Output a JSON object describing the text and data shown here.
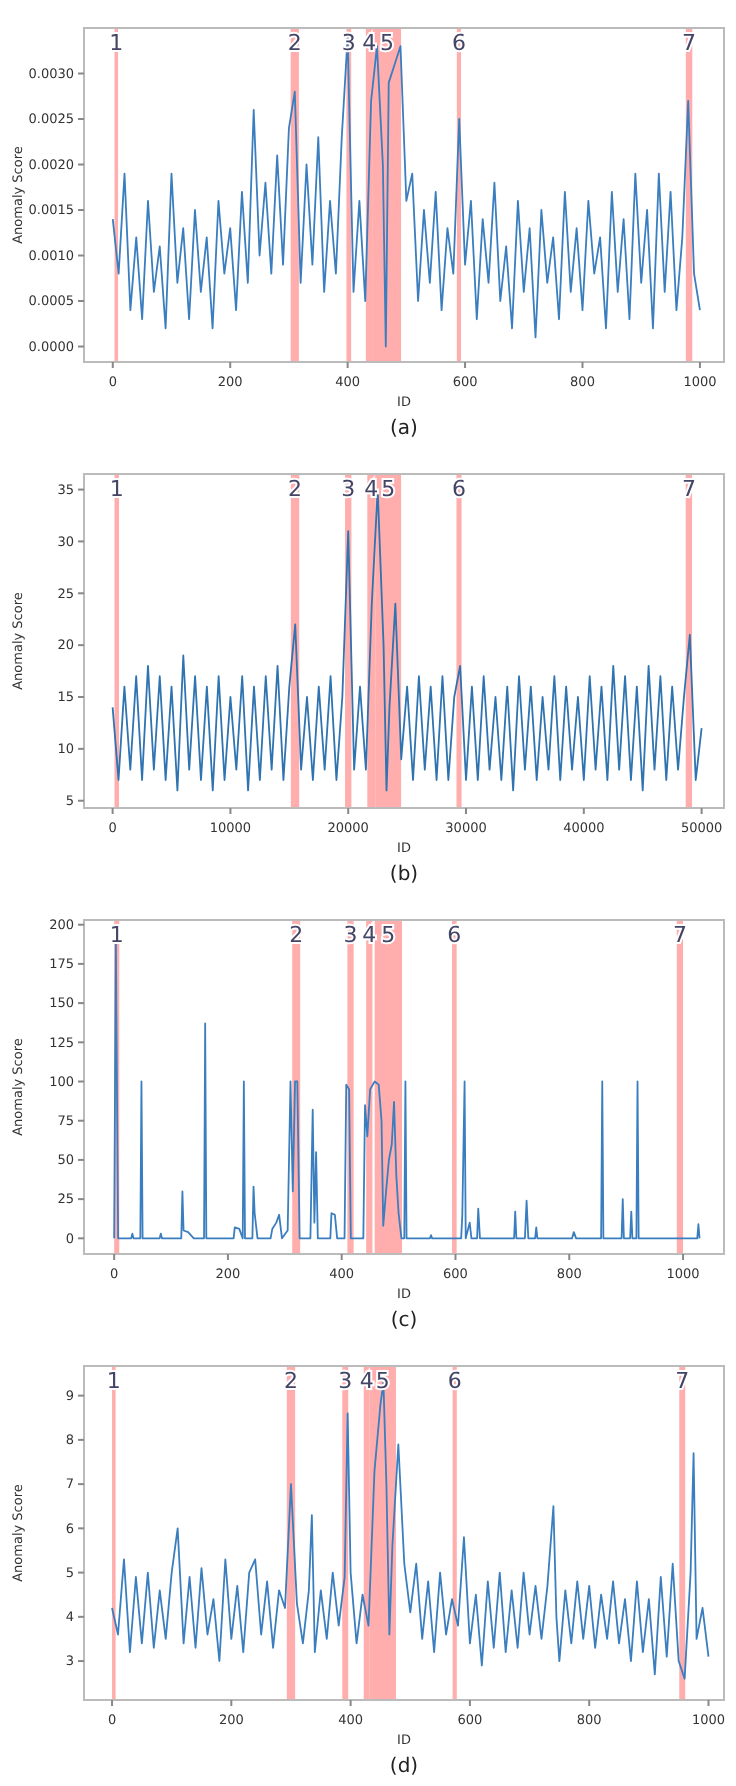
{
  "chart_data": [
    {
      "type": "line",
      "xlabel": "ID",
      "ylabel": "Anomaly Score",
      "annotations": [
        "(a)"
      ],
      "xlim": [
        -49,
        1041
      ],
      "ylim": [
        -0.00017,
        0.0035
      ],
      "xticks": [
        0,
        200,
        400,
        600,
        800,
        1000
      ],
      "yticks": [
        {
          "value": 0,
          "label": "0.0000"
        },
        {
          "value": 0.0005,
          "label": "0.0005"
        },
        {
          "value": 0.001,
          "label": "0.0010"
        },
        {
          "value": 0.0015,
          "label": "0.0015"
        },
        {
          "value": 0.002,
          "label": "0.0020"
        },
        {
          "value": 0.0025,
          "label": "0.0025"
        },
        {
          "value": 0.003,
          "label": "0.0030"
        }
      ],
      "bands": [
        {
          "axis": "x",
          "from": 3,
          "to": 9,
          "label": "1",
          "color": "#ff9999"
        },
        {
          "axis": "x",
          "from": 303,
          "to": 317,
          "label": "2",
          "color": "#ff9999"
        },
        {
          "axis": "x",
          "from": 398,
          "to": 406,
          "label": "3",
          "color": "#ff9999"
        },
        {
          "axis": "x",
          "from": 431,
          "to": 443,
          "label": "4",
          "color": "#ff9999"
        },
        {
          "axis": "x",
          "from": 443,
          "to": 491,
          "label": "5",
          "color": "#ff9999"
        },
        {
          "axis": "x",
          "from": 586,
          "to": 593,
          "label": "6",
          "color": "#ff9999"
        },
        {
          "axis": "x",
          "from": 976,
          "to": 987,
          "label": "7",
          "color": "#ff9999"
        }
      ],
      "x": [
        0,
        10,
        20,
        30,
        40,
        50,
        60,
        70,
        80,
        90,
        100,
        110,
        120,
        130,
        140,
        150,
        160,
        170,
        180,
        190,
        200,
        210,
        220,
        230,
        240,
        250,
        260,
        270,
        280,
        290,
        300,
        310,
        320,
        330,
        340,
        350,
        360,
        370,
        380,
        390,
        400,
        410,
        420,
        430,
        440,
        450,
        460,
        465,
        470,
        480,
        490,
        500,
        510,
        520,
        530,
        540,
        550,
        560,
        570,
        580,
        590,
        600,
        610,
        620,
        630,
        640,
        650,
        660,
        670,
        680,
        690,
        700,
        710,
        720,
        730,
        740,
        750,
        760,
        770,
        780,
        790,
        800,
        810,
        820,
        830,
        840,
        850,
        860,
        870,
        880,
        890,
        900,
        910,
        920,
        930,
        940,
        950,
        960,
        970,
        980,
        990,
        1000
      ],
      "series": [
        {
          "color": "#3a7ebf",
          "values": [
            0.0014,
            0.0008,
            0.0019,
            0.0004,
            0.0012,
            0.0003,
            0.0016,
            0.0006,
            0.0011,
            0.0002,
            0.0019,
            0.0007,
            0.0013,
            0.0003,
            0.0015,
            0.0006,
            0.0012,
            0.0002,
            0.0016,
            0.0008,
            0.0013,
            0.0004,
            0.0017,
            0.0007,
            0.0026,
            0.001,
            0.0018,
            0.0008,
            0.0021,
            0.0009,
            0.0024,
            0.0028,
            0.0007,
            0.002,
            0.0009,
            0.0023,
            0.0006,
            0.0016,
            0.0008,
            0.0023,
            0.0034,
            0.0006,
            0.0016,
            0.0005,
            0.0027,
            0.0033,
            0.002,
            0.0,
            0.0029,
            0.0031,
            0.0033,
            0.0016,
            0.0019,
            0.0005,
            0.0015,
            0.0007,
            0.0017,
            0.0004,
            0.0013,
            0.0008,
            0.0025,
            0.0009,
            0.0016,
            0.0003,
            0.0014,
            0.0007,
            0.0018,
            0.0005,
            0.0011,
            0.0002,
            0.0016,
            0.0006,
            0.0013,
            0.0001,
            0.0015,
            0.0007,
            0.0012,
            0.0003,
            0.0017,
            0.0006,
            0.0013,
            0.0004,
            0.0016,
            0.0008,
            0.0012,
            0.0002,
            0.0017,
            0.0006,
            0.0014,
            0.0003,
            0.0019,
            0.0007,
            0.0015,
            0.0002,
            0.0019,
            0.0006,
            0.0017,
            0.0004,
            0.0012,
            0.0027,
            0.0008,
            0.0004
          ]
        }
      ]
    },
    {
      "type": "line",
      "xlabel": "ID",
      "ylabel": "Anomaly Score",
      "annotations": [
        "(b)"
      ],
      "xlim": [
        -2430,
        51900
      ],
      "ylim": [
        4.3,
        36.5
      ],
      "xticks": [
        0,
        10000,
        20000,
        30000,
        40000,
        50000
      ],
      "yticks": [
        5,
        10,
        15,
        20,
        25,
        30,
        35
      ],
      "bands": [
        {
          "axis": "x",
          "from": 160,
          "to": 540,
          "label": "1",
          "color": "#ff9999"
        },
        {
          "axis": "x",
          "from": 15130,
          "to": 15840,
          "label": "2",
          "color": "#ff9999"
        },
        {
          "axis": "x",
          "from": 19730,
          "to": 20270,
          "label": "3",
          "color": "#ff9999"
        },
        {
          "axis": "x",
          "from": 21620,
          "to": 22300,
          "label": "4",
          "color": "#ff9999"
        },
        {
          "axis": "x",
          "from": 22300,
          "to": 24490,
          "label": "5",
          "color": "#ff9999"
        },
        {
          "axis": "x",
          "from": 29190,
          "to": 29620,
          "label": "6",
          "color": "#ff9999"
        },
        {
          "axis": "x",
          "from": 48650,
          "to": 49190,
          "label": "7",
          "color": "#ff9999"
        }
      ],
      "x": [
        0,
        500,
        1000,
        1500,
        2000,
        2500,
        3000,
        3500,
        4000,
        4500,
        5000,
        5500,
        6000,
        6500,
        7000,
        7500,
        8000,
        8500,
        9000,
        9500,
        10000,
        10500,
        11000,
        11500,
        12000,
        12500,
        13000,
        13500,
        14000,
        14500,
        15000,
        15500,
        16000,
        16500,
        17000,
        17500,
        18000,
        18500,
        19000,
        19500,
        20000,
        20500,
        21000,
        21500,
        22000,
        22500,
        23000,
        23250,
        23500,
        24000,
        24500,
        25000,
        25500,
        26000,
        26500,
        27000,
        27500,
        28000,
        28500,
        29000,
        29500,
        30000,
        30500,
        31000,
        31500,
        32000,
        32500,
        33000,
        33500,
        34000,
        34500,
        35000,
        35500,
        36000,
        36500,
        37000,
        37500,
        38000,
        38500,
        39000,
        39500,
        40000,
        40500,
        41000,
        41500,
        42000,
        42500,
        43000,
        43500,
        44000,
        44500,
        45000,
        45500,
        46000,
        46500,
        47000,
        47500,
        48000,
        48500,
        49000,
        49500,
        50000
      ],
      "series": [
        {
          "color": "#2f73b0",
          "values": [
            14,
            7,
            16,
            8,
            17,
            7,
            18,
            8,
            17,
            7,
            16,
            6,
            19,
            8,
            17,
            7,
            16,
            6,
            17,
            7,
            15,
            8,
            17,
            6,
            16,
            7,
            17,
            8,
            18,
            7,
            16,
            22,
            8,
            15,
            7,
            16,
            8,
            17,
            7,
            15,
            31,
            8,
            16,
            8,
            24,
            35,
            20,
            6,
            14,
            24,
            9,
            16,
            7,
            17,
            8,
            16,
            7,
            17,
            7,
            15,
            18,
            7,
            16,
            7,
            17,
            8,
            15,
            7,
            16,
            6,
            17,
            8,
            16,
            7,
            15,
            8,
            17,
            7,
            16,
            8,
            15,
            7,
            17,
            8,
            16,
            7,
            18,
            8,
            17,
            7,
            16,
            6,
            18,
            8,
            17,
            7,
            16,
            8,
            15,
            21,
            7,
            12
          ]
        }
      ]
    },
    {
      "type": "line",
      "xlabel": "ID",
      "ylabel": "Anomaly Score",
      "annotations": [
        "(c)"
      ],
      "xlim": [
        -53,
        1072
      ],
      "ylim": [
        -10,
        203
      ],
      "xticks": [
        0,
        200,
        400,
        600,
        800,
        1000
      ],
      "yticks": [
        0,
        25,
        50,
        75,
        100,
        125,
        150,
        175,
        200
      ],
      "bands": [
        {
          "axis": "x",
          "from": 0,
          "to": 9,
          "label": "1",
          "color": "#ff9999"
        },
        {
          "axis": "x",
          "from": 313,
          "to": 327,
          "label": "2",
          "color": "#ff9999"
        },
        {
          "axis": "x",
          "from": 410,
          "to": 421,
          "label": "3",
          "color": "#ff9999"
        },
        {
          "axis": "x",
          "from": 443,
          "to": 454,
          "label": "4",
          "color": "#ff9999"
        },
        {
          "axis": "x",
          "from": 458,
          "to": 506,
          "label": "5",
          "color": "#ff9999"
        },
        {
          "axis": "x",
          "from": 594,
          "to": 602,
          "label": "6",
          "color": "#ff9999"
        },
        {
          "axis": "x",
          "from": 989,
          "to": 1000,
          "label": "7",
          "color": "#ff9999"
        }
      ],
      "x": [
        0,
        3,
        7,
        30,
        32,
        34,
        46,
        48,
        50,
        80,
        82,
        84,
        118,
        120,
        122,
        130,
        140,
        158,
        160,
        162,
        210,
        212,
        220,
        226,
        228,
        230,
        243,
        245,
        247,
        252,
        275,
        278,
        285,
        290,
        295,
        305,
        310,
        314,
        318,
        322,
        326,
        345,
        349,
        352,
        355,
        358,
        380,
        382,
        388,
        392,
        405,
        408,
        413,
        416,
        438,
        441,
        445,
        450,
        458,
        465,
        470,
        473,
        478,
        483,
        488,
        492,
        496,
        500,
        505,
        510,
        512,
        514,
        555,
        557,
        559,
        610,
        612,
        616,
        618,
        625,
        628,
        638,
        640,
        643,
        703,
        705,
        707,
        722,
        725,
        728,
        740,
        742,
        744,
        805,
        808,
        812,
        856,
        858,
        860,
        892,
        894,
        896,
        907,
        909,
        911,
        918,
        920,
        922,
        1025,
        1027,
        1029
      ],
      "series": [
        {
          "color": "#3a7ebf",
          "values": [
            0,
            190,
            0,
            0,
            3,
            0,
            0,
            100,
            0,
            0,
            3,
            0,
            0,
            30,
            5,
            4,
            0,
            0,
            137,
            0,
            0,
            7,
            6,
            0,
            100,
            0,
            0,
            33,
            16,
            0,
            0,
            6,
            10,
            15,
            0,
            5,
            100,
            30,
            100,
            100,
            0,
            0,
            82,
            10,
            55,
            0,
            0,
            16,
            15,
            0,
            0,
            98,
            95,
            0,
            0,
            85,
            65,
            95,
            100,
            98,
            75,
            8,
            30,
            50,
            60,
            87,
            40,
            16,
            0,
            0,
            100,
            0,
            0,
            2,
            0,
            0,
            15,
            100,
            0,
            10,
            0,
            0,
            19,
            0,
            0,
            17,
            0,
            0,
            24,
            0,
            0,
            7,
            0,
            0,
            4,
            0,
            0,
            100,
            0,
            0,
            25,
            0,
            0,
            17,
            0,
            0,
            100,
            0,
            0,
            9,
            0
          ]
        }
      ]
    },
    {
      "type": "line",
      "xlabel": "ID",
      "ylabel": "Anomaly Score",
      "annotations": [
        "(d)"
      ],
      "xlim": [
        -47,
        1026
      ],
      "ylim": [
        2.12,
        9.67
      ],
      "xticks": [
        0,
        200,
        400,
        600,
        800,
        1000
      ],
      "yticks": [
        3,
        4,
        5,
        6,
        7,
        8,
        9
      ],
      "bands": [
        {
          "axis": "x",
          "from": 0,
          "to": 6,
          "label": "1",
          "color": "#ff9999"
        },
        {
          "axis": "x",
          "from": 293,
          "to": 307,
          "label": "2",
          "color": "#ff9999"
        },
        {
          "axis": "x",
          "from": 386,
          "to": 396,
          "label": "3",
          "color": "#ff9999"
        },
        {
          "axis": "x",
          "from": 422,
          "to": 432,
          "label": "4",
          "color": "#ff9999"
        },
        {
          "axis": "x",
          "from": 432,
          "to": 476,
          "label": "5",
          "color": "#ff9999"
        },
        {
          "axis": "x",
          "from": 571,
          "to": 578,
          "label": "6",
          "color": "#ff9999"
        },
        {
          "axis": "x",
          "from": 951,
          "to": 961,
          "label": "7",
          "color": "#ff9999"
        }
      ],
      "x": [
        0,
        10,
        20,
        30,
        40,
        50,
        60,
        70,
        80,
        90,
        100,
        110,
        120,
        130,
        140,
        150,
        160,
        170,
        180,
        190,
        200,
        210,
        220,
        230,
        240,
        250,
        260,
        270,
        280,
        290,
        300,
        310,
        320,
        330,
        335,
        340,
        350,
        360,
        370,
        380,
        390,
        395,
        400,
        410,
        420,
        430,
        440,
        450,
        455,
        460,
        465,
        470,
        480,
        490,
        500,
        510,
        520,
        530,
        540,
        550,
        560,
        570,
        580,
        590,
        600,
        610,
        620,
        630,
        640,
        650,
        660,
        670,
        680,
        690,
        700,
        710,
        720,
        730,
        740,
        745,
        750,
        760,
        770,
        780,
        790,
        800,
        810,
        820,
        830,
        840,
        850,
        860,
        870,
        880,
        890,
        900,
        910,
        920,
        930,
        940,
        950,
        960,
        970,
        975,
        980,
        990,
        1000
      ],
      "series": [
        {
          "color": "#3a7ebf",
          "values": [
            4.2,
            3.6,
            5.3,
            3.2,
            4.9,
            3.4,
            5.0,
            3.3,
            4.6,
            3.5,
            5.0,
            6.0,
            3.4,
            4.9,
            3.3,
            5.1,
            3.6,
            4.4,
            3.0,
            5.3,
            3.5,
            4.7,
            3.2,
            5.0,
            5.3,
            3.6,
            4.8,
            3.3,
            4.6,
            4.2,
            7.0,
            4.3,
            3.4,
            4.6,
            6.3,
            3.2,
            4.6,
            3.5,
            5.0,
            3.8,
            4.9,
            8.6,
            5.0,
            3.4,
            4.5,
            3.8,
            7.3,
            8.8,
            9.3,
            7.0,
            3.6,
            5.6,
            7.9,
            5.2,
            4.1,
            5.2,
            3.5,
            4.8,
            3.2,
            5.0,
            3.6,
            4.4,
            3.8,
            5.8,
            3.4,
            4.5,
            2.9,
            4.8,
            3.3,
            5.0,
            3.2,
            4.6,
            3.3,
            5.0,
            3.6,
            4.7,
            3.5,
            4.7,
            6.5,
            4.0,
            3.0,
            4.6,
            3.4,
            4.8,
            3.5,
            4.7,
            3.3,
            4.5,
            3.5,
            4.8,
            3.4,
            4.4,
            3.0,
            4.8,
            3.2,
            4.4,
            2.7,
            4.9,
            3.1,
            5.2,
            3.0,
            2.6,
            5.0,
            7.7,
            3.5,
            4.2,
            3.1
          ]
        }
      ]
    }
  ]
}
